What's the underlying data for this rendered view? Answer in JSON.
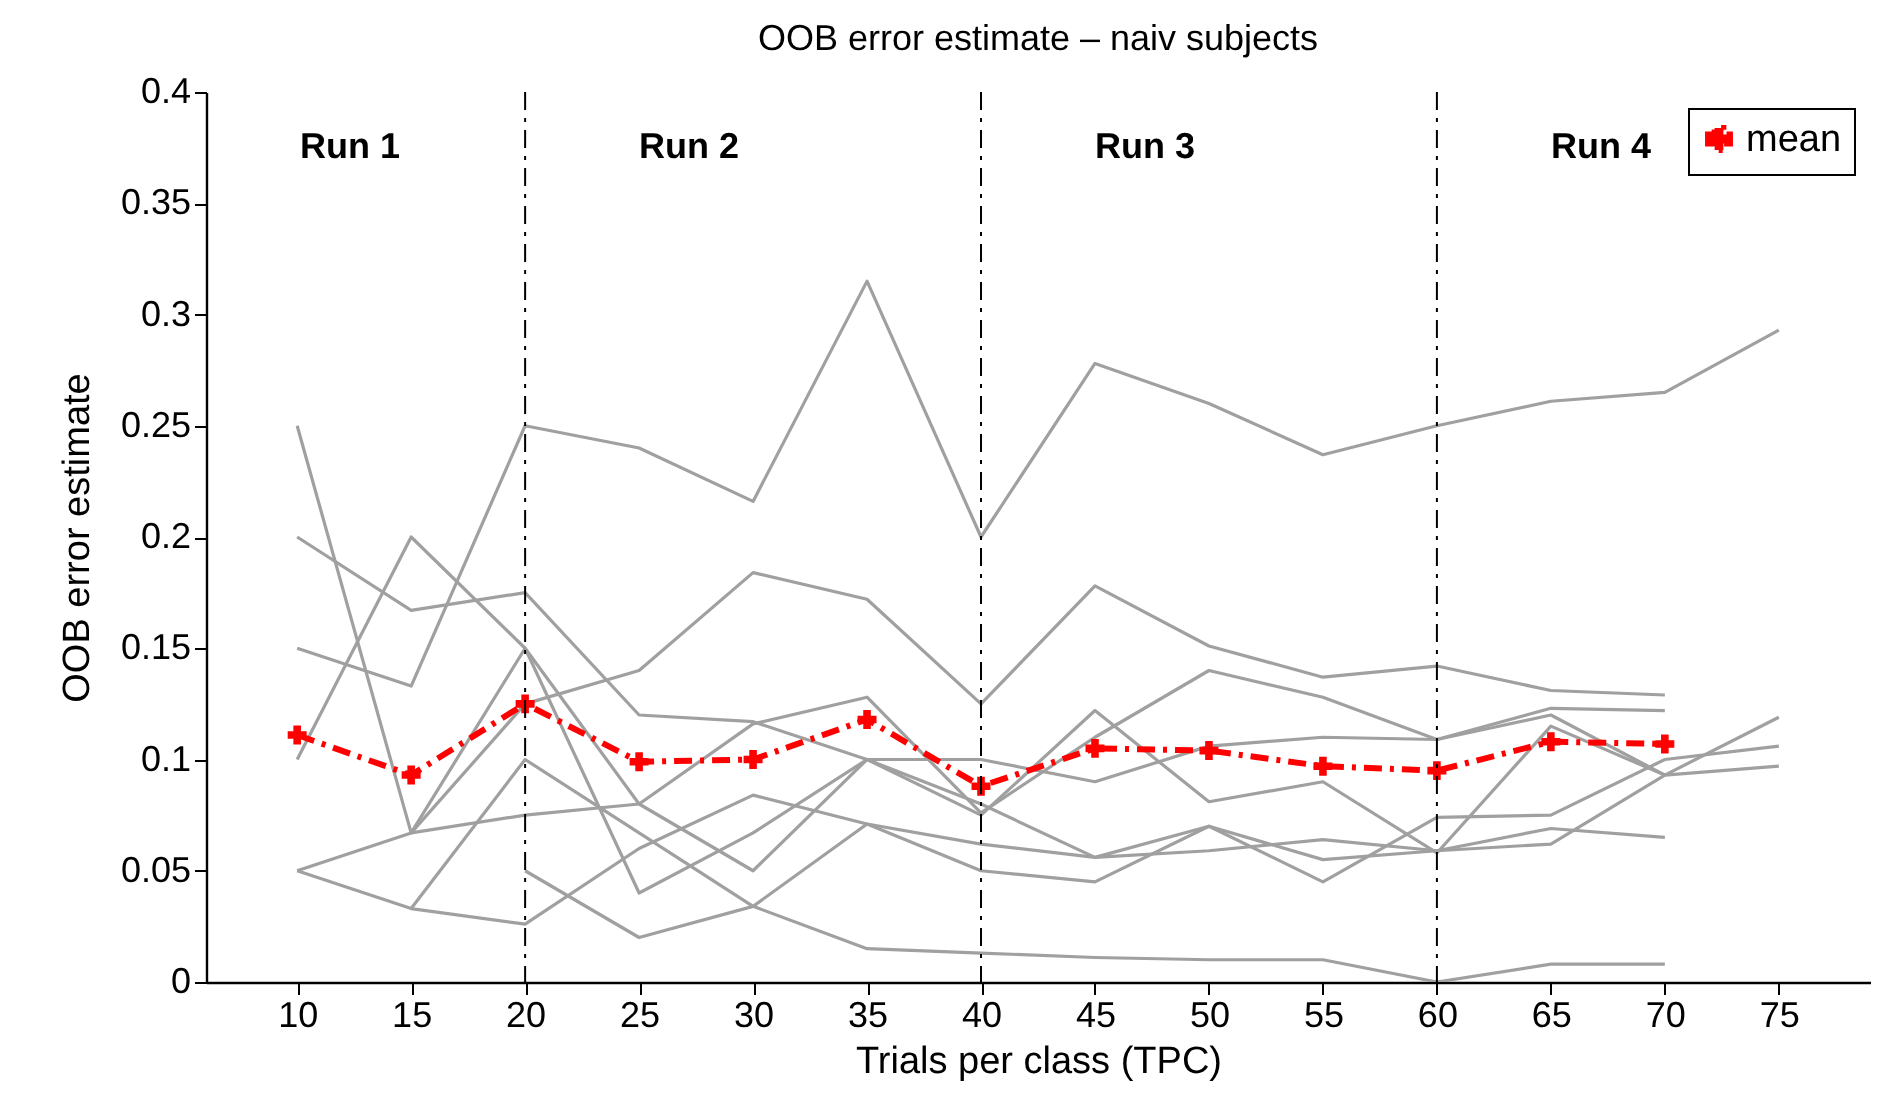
{
  "chart_data": {
    "type": "line",
    "title": "OOB error estimate – naiv subjects",
    "xlabel": "Trials per class (TPC)",
    "ylabel": "OOB error estimate",
    "x": [
      10,
      15,
      20,
      25,
      30,
      35,
      40,
      45,
      50,
      55,
      60,
      65,
      70,
      75
    ],
    "series": [
      {
        "color": "#a0a0a0",
        "values": [
          0.15,
          0.133,
          0.25,
          0.24,
          0.216,
          0.315,
          0.2,
          0.278,
          0.26,
          0.237,
          0.25,
          0.261,
          0.265,
          0.293
        ]
      },
      {
        "color": "#a0a0a0",
        "values": [
          0.2,
          0.167,
          0.175,
          0.12,
          0.117,
          0.1,
          0.1,
          0.09,
          0.106,
          0.11,
          0.109,
          0.123,
          0.122,
          null
        ]
      },
      {
        "color": "#a0a0a0",
        "values": [
          0.1,
          0.2,
          0.15,
          0.08,
          0.05,
          0.1,
          0.075,
          0.122,
          0.081,
          0.09,
          0.058,
          0.115,
          0.093,
          null
        ]
      },
      {
        "color": "#a0a0a0",
        "values": [
          0.25,
          0.067,
          0.125,
          0.14,
          0.184,
          0.172,
          0.125,
          0.178,
          0.151,
          0.137,
          0.142,
          0.131,
          0.129,
          null
        ]
      },
      {
        "color": "#a0a0a0",
        "values": [
          0.05,
          0.067,
          0.075,
          0.08,
          0.116,
          0.128,
          0.076,
          0.11,
          0.14,
          0.128,
          0.109,
          0.12,
          0.093,
          0.119
        ]
      },
      {
        "color": "#a0a0a0",
        "values": [
          0.05,
          0.033,
          0.026,
          0.06,
          0.084,
          0.071,
          0.062,
          0.056,
          0.07,
          0.055,
          0.059,
          0.069,
          0.065,
          null
        ]
      },
      {
        "color": "#a0a0a0",
        "values": [
          null,
          0.067,
          0.15,
          0.04,
          0.067,
          0.1,
          0.08,
          0.056,
          0.059,
          0.064,
          0.059,
          0.062,
          0.093,
          0.097
        ]
      },
      {
        "color": "#a0a0a0",
        "values": [
          null,
          0.033,
          0.1,
          0.067,
          0.034,
          0.015,
          0.013,
          0.011,
          0.01,
          0.01,
          0,
          0.008,
          0.008,
          null
        ]
      },
      {
        "color": "#a0a0a0",
        "values": [
          null,
          null,
          0.05,
          0.02,
          0.034,
          0.071,
          0.05,
          0.045,
          0.07,
          0.045,
          0.074,
          0.075,
          0.1,
          0.106
        ]
      },
      {
        "name": "mean",
        "color": "#ff0000",
        "marker": "cross",
        "line_style": "dashed",
        "values": [
          0.111,
          0.093,
          0.125,
          0.099,
          0.1,
          0.118,
          0.088,
          0.105,
          0.104,
          0.097,
          0.095,
          0.108,
          0.107,
          null
        ]
      }
    ],
    "xlim": [
      6,
      79
    ],
    "xticks": [
      10,
      15,
      20,
      25,
      30,
      35,
      40,
      45,
      50,
      55,
      60,
      65,
      70,
      75
    ],
    "ylim": [
      0,
      0.4
    ],
    "yticks": [
      0,
      0.05,
      0.1,
      0.15,
      0.2,
      0.25,
      0.3,
      0.35,
      0.4
    ],
    "ref_lines": [
      {
        "axis": "x",
        "value": 20,
        "color": "#000000",
        "line_style": "dashed"
      },
      {
        "axis": "x",
        "value": 40,
        "color": "#000000",
        "line_style": "dashed"
      },
      {
        "axis": "x",
        "value": 60,
        "color": "#000000",
        "line_style": "dashed"
      }
    ],
    "annotations": [
      "Run 1",
      "Run 2",
      "Run 3",
      "Run 4"
    ],
    "legend": "top right",
    "grid": false
  }
}
